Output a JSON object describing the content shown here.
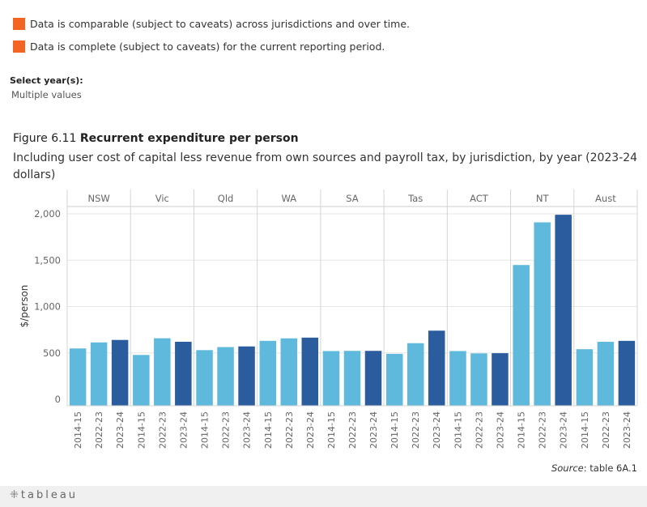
{
  "legend": [
    {
      "text": "Data is comparable (subject to caveats) across jurisdictions and over time.",
      "color": "#f26522"
    },
    {
      "text": "Data is complete (subject to caveats) for the current reporting period.",
      "color": "#f26522"
    }
  ],
  "year_filter": {
    "label": "Select year(s):",
    "value": "Multiple values"
  },
  "figure": {
    "number": "Figure 6.11",
    "title": "Recurrent expenditure per person",
    "subtitle": "Including user cost of capital less revenue from own sources and payroll tax, by jurisdiction, by year (2023-24 dollars)"
  },
  "source": {
    "label": "Source",
    "text": ": table 6A.1"
  },
  "footer": {
    "logo_text": "tableau",
    "logo_glyph": "⁜"
  },
  "colors": {
    "light_bar": "#5fb9dc",
    "dark_bar": "#2a5c9e",
    "legend": "#f26522"
  },
  "chart_data": {
    "type": "bar",
    "ylabel": "$/person",
    "ylim": [
      0,
      2100
    ],
    "yticks": [
      0,
      500,
      1000,
      1500,
      2000
    ],
    "ytick_labels": [
      "0",
      "500",
      "1,000",
      "1,500",
      "2,000"
    ],
    "years": [
      "2014-15",
      "2022-23",
      "2023-24"
    ],
    "jurisdictions": [
      {
        "name": "NSW",
        "values": [
          548,
          613,
          640
        ]
      },
      {
        "name": "Vic",
        "values": [
          478,
          658,
          620
        ]
      },
      {
        "name": "Qld",
        "values": [
          530,
          563,
          570
        ]
      },
      {
        "name": "WA",
        "values": [
          630,
          657,
          665
        ]
      },
      {
        "name": "SA",
        "values": [
          520,
          522,
          522
        ]
      },
      {
        "name": "Tas",
        "values": [
          490,
          605,
          740
        ]
      },
      {
        "name": "ACT",
        "values": [
          520,
          495,
          497
        ]
      },
      {
        "name": "NT",
        "values": [
          1448,
          1908,
          1990
        ]
      },
      {
        "name": "Aust",
        "values": [
          540,
          620,
          630
        ]
      }
    ]
  }
}
